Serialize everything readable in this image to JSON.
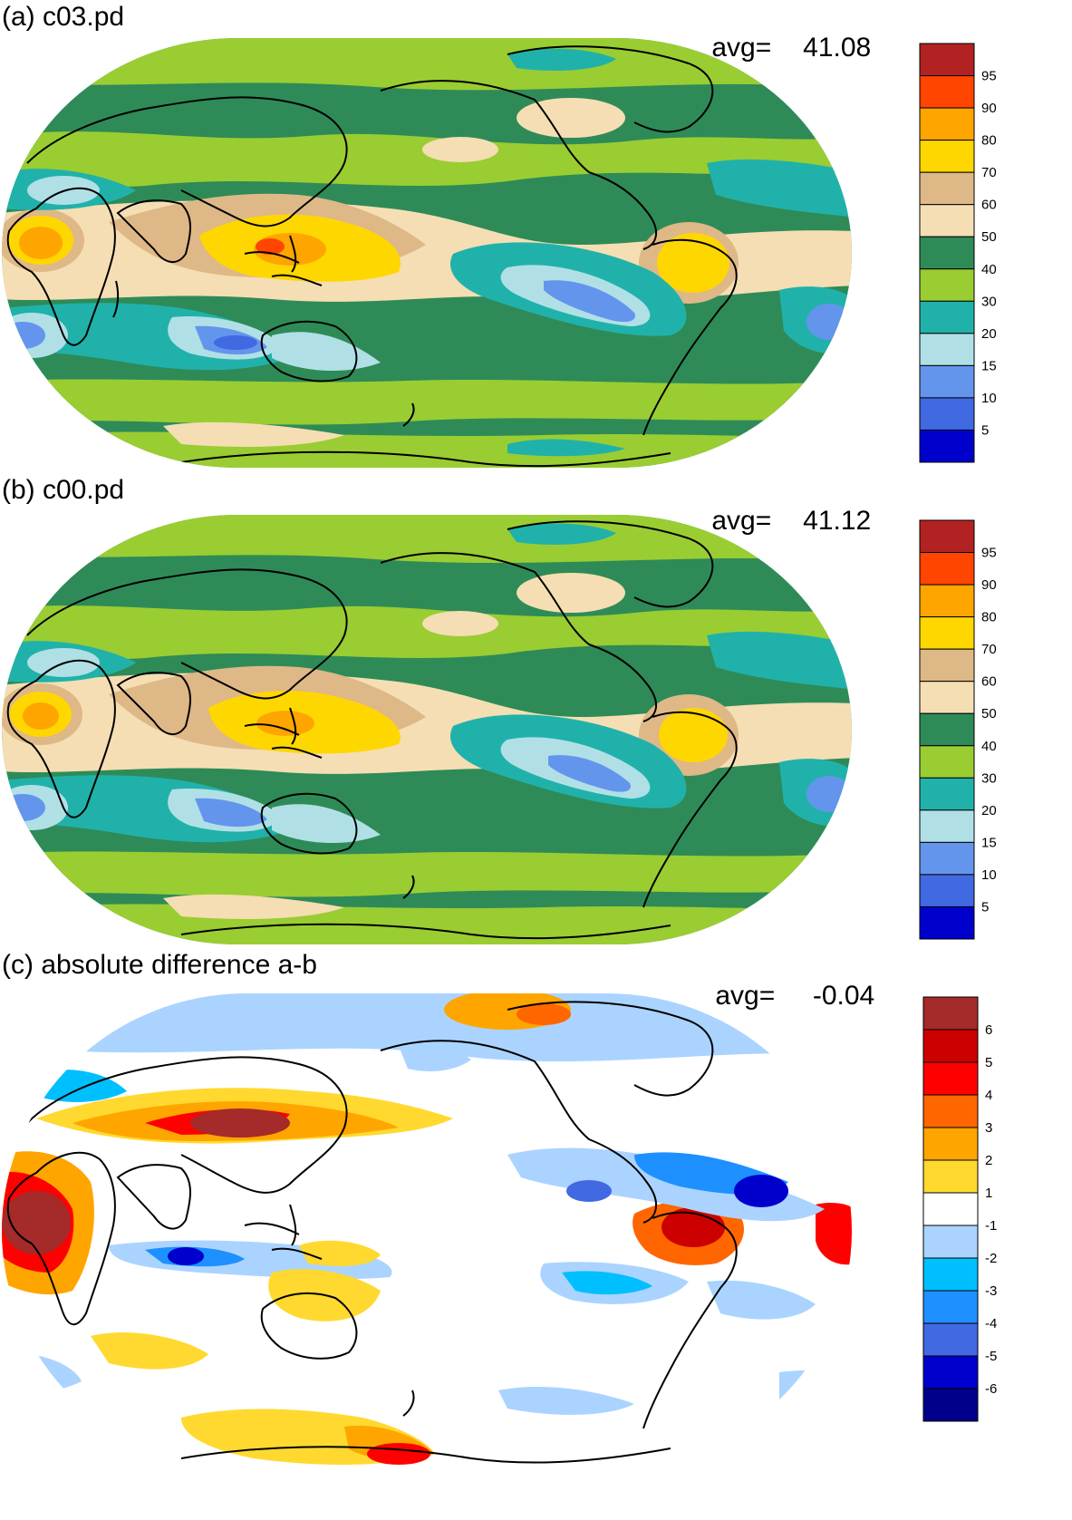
{
  "panels": [
    {
      "title": "(a) c03.pd",
      "avg_label": "avg=",
      "avg_value": "41.08",
      "colorbar": {
        "labels": [
          "95",
          "90",
          "80",
          "70",
          "60",
          "50",
          "40",
          "30",
          "20",
          "15",
          "10",
          "5"
        ],
        "colors": [
          "#b22222",
          "#ff4500",
          "#ffa500",
          "#ffd700",
          "#deb887",
          "#f5deb3",
          "#2e8b57",
          "#9acd32",
          "#20b2aa",
          "#b0e0e6",
          "#6495ed",
          "#4169e1",
          "#0000cd"
        ]
      }
    },
    {
      "title": "(b) c00.pd",
      "avg_label": "avg=",
      "avg_value": "41.12",
      "colorbar": {
        "labels": [
          "95",
          "90",
          "80",
          "70",
          "60",
          "50",
          "40",
          "30",
          "20",
          "15",
          "10",
          "5"
        ],
        "colors": [
          "#b22222",
          "#ff4500",
          "#ffa500",
          "#ffd700",
          "#deb887",
          "#f5deb3",
          "#2e8b57",
          "#9acd32",
          "#20b2aa",
          "#b0e0e6",
          "#6495ed",
          "#4169e1",
          "#0000cd"
        ]
      }
    },
    {
      "title": "(c) absolute difference a-b",
      "avg_label": "avg=",
      "avg_value": "-0.04",
      "colorbar": {
        "labels": [
          "6",
          "5",
          "4",
          "3",
          "2",
          "1",
          "-1",
          "-2",
          "-3",
          "-4",
          "-5",
          "-6"
        ],
        "colors": [
          "#a52a2a",
          "#cd0000",
          "#ff0000",
          "#ff6600",
          "#ffa500",
          "#ffd92f",
          "#ffffff",
          "#aad4ff",
          "#00bfff",
          "#1e90ff",
          "#4169e1",
          "#0000cd",
          "#00008b"
        ]
      }
    }
  ],
  "map_colors": {
    "ocean_base": "#2e8b57",
    "mid_band": "#9acd32",
    "teal": "#20b2aa",
    "light_blue": "#b0e0e6",
    "blue": "#6495ed",
    "tan": "#deb887",
    "wheat": "#f5deb3",
    "yellow": "#ffd700",
    "orange": "#ffa500",
    "red": "#ff4500",
    "coast": "#000000"
  }
}
